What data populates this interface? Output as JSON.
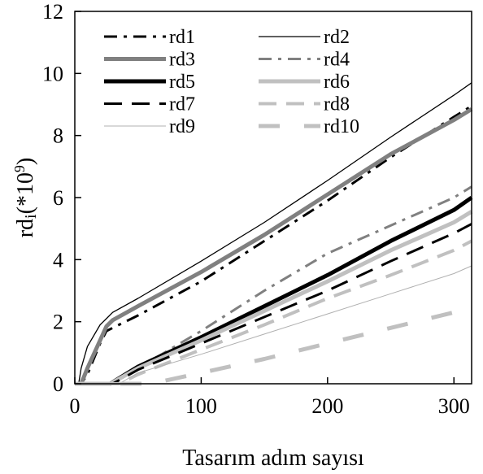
{
  "chart_data": {
    "type": "line",
    "title": "",
    "xlabel": "Tasarım adım sayısı",
    "ylabel_main": "rd",
    "ylabel_sub": "i",
    "ylabel_tail": "(*10",
    "ylabel_sup": "9",
    "ylabel_close": ")",
    "xlim": [
      0,
      314
    ],
    "ylim": [
      0,
      12
    ],
    "xticks": [
      0,
      100,
      200,
      300
    ],
    "yticks": [
      0,
      2,
      4,
      6,
      8,
      10,
      12
    ],
    "grid": false,
    "legend_position": "top-left",
    "series": [
      {
        "name": "rd1",
        "color": "#000000",
        "style": "dashdot",
        "width": 3,
        "x": [
          0,
          5,
          10,
          20,
          25,
          30,
          50,
          100,
          150,
          200,
          250,
          300,
          314
        ],
        "y": [
          0,
          0,
          0.3,
          1.3,
          1.7,
          1.8,
          2.2,
          3.3,
          4.6,
          5.9,
          7.3,
          8.6,
          8.95
        ]
      },
      {
        "name": "rd2",
        "color": "#000000",
        "style": "solid",
        "width": 1.3,
        "x": [
          0,
          3,
          5,
          10,
          20,
          25,
          30,
          50,
          100,
          150,
          200,
          250,
          300,
          314
        ],
        "y": [
          0,
          0,
          0.5,
          1.2,
          1.9,
          2.1,
          2.3,
          2.75,
          3.95,
          5.2,
          6.55,
          7.95,
          9.3,
          9.7
        ]
      },
      {
        "name": "rd3",
        "color": "#808080",
        "style": "solid",
        "width": 5,
        "x": [
          0,
          5,
          10,
          20,
          25,
          30,
          50,
          100,
          150,
          200,
          250,
          300,
          314
        ],
        "y": [
          0,
          0,
          0.5,
          1.4,
          1.85,
          2.05,
          2.5,
          3.6,
          4.8,
          6.1,
          7.4,
          8.5,
          8.85
        ]
      },
      {
        "name": "rd4",
        "color": "#808080",
        "style": "dashdot",
        "width": 3,
        "x": [
          0,
          30,
          50,
          100,
          150,
          200,
          250,
          300,
          314
        ],
        "y": [
          0,
          0,
          0.5,
          1.7,
          3.0,
          4.2,
          5.1,
          6.0,
          6.35
        ]
      },
      {
        "name": "rd5",
        "color": "#000000",
        "style": "solid",
        "width": 5,
        "x": [
          0,
          28,
          50,
          100,
          150,
          200,
          250,
          300,
          314
        ],
        "y": [
          0,
          0,
          0.55,
          1.5,
          2.5,
          3.5,
          4.6,
          5.6,
          6.0
        ]
      },
      {
        "name": "rd6",
        "color": "#c0c0c0",
        "style": "solid",
        "width": 5,
        "x": [
          0,
          28,
          50,
          100,
          150,
          200,
          250,
          300,
          314
        ],
        "y": [
          0,
          0,
          0.5,
          1.4,
          2.35,
          3.3,
          4.3,
          5.2,
          5.55
        ]
      },
      {
        "name": "rd7",
        "color": "#000000",
        "style": "dash",
        "width": 3,
        "x": [
          0,
          30,
          50,
          100,
          150,
          200,
          250,
          300,
          314
        ],
        "y": [
          0,
          0,
          0.45,
          1.3,
          2.15,
          3.0,
          3.95,
          4.85,
          5.15
        ]
      },
      {
        "name": "rd8",
        "color": "#c0c0c0",
        "style": "dash",
        "width": 4,
        "x": [
          0,
          35,
          50,
          100,
          150,
          200,
          250,
          300,
          314
        ],
        "y": [
          0,
          0,
          0.3,
          1.1,
          1.9,
          2.75,
          3.5,
          4.3,
          4.6
        ]
      },
      {
        "name": "rd9",
        "color": "#b0b0b0",
        "style": "solid",
        "width": 1,
        "x": [
          0,
          35,
          50,
          100,
          150,
          200,
          250,
          300,
          314
        ],
        "y": [
          0,
          0,
          0.35,
          0.95,
          1.6,
          2.25,
          2.9,
          3.55,
          3.8
        ]
      },
      {
        "name": "rd10",
        "color": "#c0c0c0",
        "style": "longdash",
        "width": 5,
        "x": [
          0,
          60,
          100,
          150,
          200,
          250,
          300,
          314
        ],
        "y": [
          0,
          0,
          0.35,
          0.8,
          1.3,
          1.8,
          2.3,
          2.4
        ]
      }
    ]
  }
}
